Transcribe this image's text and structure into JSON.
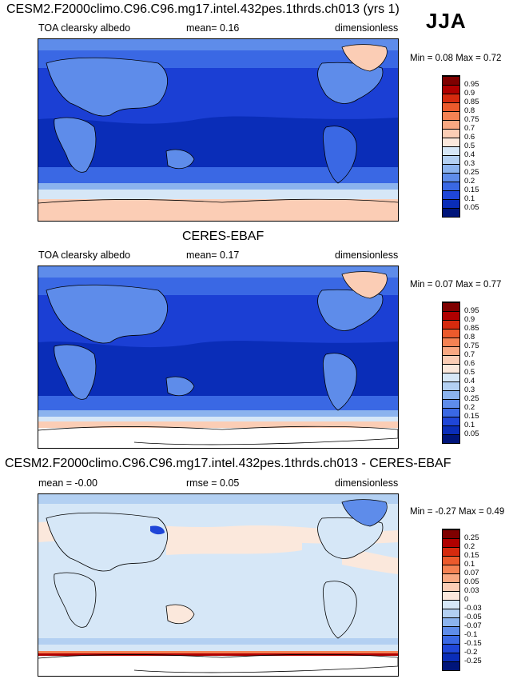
{
  "season": "JJA",
  "panels": [
    {
      "title": "CESM2.F2000climo.C96.C96.mg17.intel.432pes.1thrds.ch013 (yrs 1)",
      "left_label": "TOA clearsky albedo",
      "center_label": "mean=  0.16",
      "right_label": "dimensionless",
      "minmax": "Min =  0.08 Max =  0.72"
    },
    {
      "title": "CERES-EBAF",
      "left_label": "TOA clearsky albedo",
      "center_label": "mean=  0.17",
      "right_label": "dimensionless",
      "minmax": "Min =  0.07 Max =  0.77"
    },
    {
      "title": "CESM2.F2000climo.C96.C96.mg17.intel.432pes.1thrds.ch013 - CERES-EBAF",
      "left_label": "mean = -0.00",
      "center_label": "rmse =  0.05",
      "right_label": "dimensionless",
      "minmax": "Min = -0.27 Max =  0.49"
    }
  ],
  "colorbar_field": {
    "labels": [
      "0.95",
      "0.9",
      "0.85",
      "0.8",
      "0.75",
      "0.7",
      "0.6",
      "0.5",
      "0.4",
      "0.3",
      "0.25",
      "0.2",
      "0.15",
      "0.1",
      "0.05"
    ],
    "colors": [
      "#7f0000",
      "#b00000",
      "#d62a0e",
      "#ec5a2c",
      "#f58253",
      "#f9a882",
      "#fbcdb5",
      "#fbe8dc",
      "#d6e7f7",
      "#b3d0f2",
      "#8bb3ee",
      "#5e8cea",
      "#3a68e4",
      "#1f46d8",
      "#0a2db8",
      "#00157a"
    ]
  },
  "colorbar_diff": {
    "labels": [
      "0.25",
      "0.2",
      "0.15",
      "0.1",
      "0.07",
      "0.05",
      "0.03",
      "0",
      "-0.03",
      "-0.05",
      "-0.07",
      "-0.1",
      "-0.15",
      "-0.2",
      "-0.25"
    ],
    "colors": [
      "#7f0000",
      "#b00000",
      "#d62a0e",
      "#ec5a2c",
      "#f58253",
      "#f9a882",
      "#fbcdb5",
      "#fbe8dc",
      "#d6e7f7",
      "#b3d0f2",
      "#8bb3ee",
      "#5e8cea",
      "#3a68e4",
      "#1f46d8",
      "#0a2db8",
      "#00157a"
    ]
  }
}
